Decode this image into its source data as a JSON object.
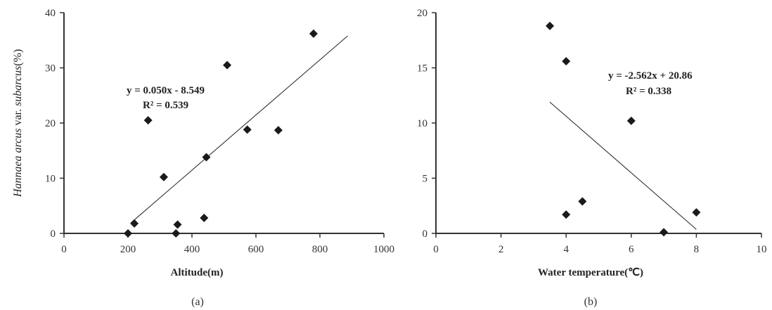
{
  "chart_data": [
    {
      "type": "scatter",
      "panel_label": "(a)",
      "xlabel": "Altitude(m)",
      "ylabel_parts": [
        {
          "text": "Hannaea arcus",
          "italic": true
        },
        {
          "text": " var. ",
          "italic": false
        },
        {
          "text": "subarcus",
          "italic": true
        },
        {
          "text": "(%)",
          "italic": false
        }
      ],
      "xlim": [
        0,
        1000
      ],
      "ylim": [
        0,
        40
      ],
      "xticks": [
        0,
        200,
        400,
        600,
        800,
        1000
      ],
      "yticks": [
        0,
        10,
        20,
        30,
        40
      ],
      "points": [
        {
          "x": 200,
          "y": 0
        },
        {
          "x": 220,
          "y": 1.8
        },
        {
          "x": 263,
          "y": 20.5
        },
        {
          "x": 312,
          "y": 10.2
        },
        {
          "x": 350,
          "y": 0
        },
        {
          "x": 355,
          "y": 1.6
        },
        {
          "x": 438,
          "y": 2.8
        },
        {
          "x": 445,
          "y": 13.8
        },
        {
          "x": 510,
          "y": 30.5
        },
        {
          "x": 573,
          "y": 18.8
        },
        {
          "x": 670,
          "y": 18.7
        },
        {
          "x": 780,
          "y": 36.2
        }
      ],
      "trendline": {
        "slope": 0.05,
        "intercept": -8.549,
        "x_range": [
          210,
          887
        ]
      },
      "equation": "y = 0.050x - 8.549",
      "r2": "R² = 0.539",
      "color": "#1a1a1a"
    },
    {
      "type": "scatter",
      "panel_label": "(b)",
      "xlabel": "Water temperature(℃)",
      "xlim": [
        0,
        10
      ],
      "ylim": [
        0,
        20
      ],
      "xticks": [
        0,
        2,
        4,
        6,
        8,
        10
      ],
      "yticks": [
        0,
        5,
        10,
        15,
        20
      ],
      "points": [
        {
          "x": 3.5,
          "y": 18.8
        },
        {
          "x": 4.0,
          "y": 15.6
        },
        {
          "x": 4.0,
          "y": 1.7
        },
        {
          "x": 4.5,
          "y": 2.9
        },
        {
          "x": 6.0,
          "y": 10.2
        },
        {
          "x": 7.0,
          "y": 0.1
        },
        {
          "x": 8.0,
          "y": 1.9
        }
      ],
      "trendline": {
        "slope": -2.562,
        "intercept": 20.86,
        "x_range": [
          3.5,
          8.0
        ]
      },
      "equation": "y = -2.562x + 20.86",
      "r2": "R² = 0.338",
      "color": "#1a1a1a"
    }
  ]
}
